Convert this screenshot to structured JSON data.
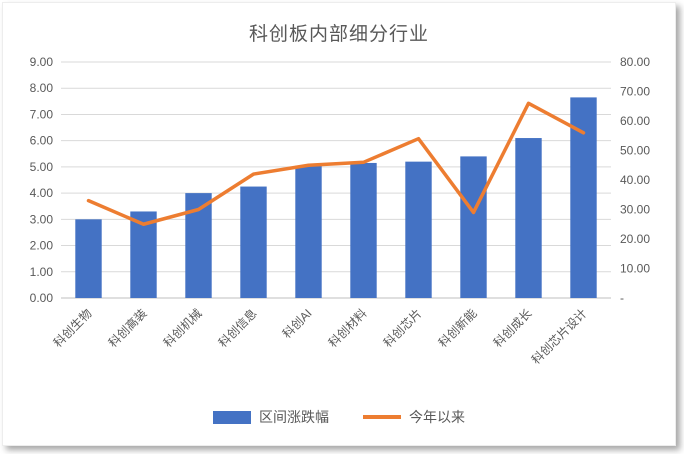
{
  "chart": {
    "title": "科创板内部细分行业",
    "colors": {
      "bar": "#4472C4",
      "line": "#ED7D31",
      "grid": "#D9D9D9",
      "axis_line": "#BFBFBF",
      "text": "#595959"
    },
    "chart_data": {
      "type": "bar",
      "subtype": "combo-bar-line",
      "title": "科创板内部细分行业",
      "xlabel": "",
      "ylabel": "",
      "grid": true,
      "legend_position": "bottom",
      "categories": [
        "科创生物",
        "科创高装",
        "科创机械",
        "科创信息",
        "科创AI",
        "科创材料",
        "科创芯片",
        "科创新能",
        "科创成长",
        "科创芯片设计"
      ],
      "series": [
        {
          "name": "区间涨跌幅",
          "type": "bar",
          "axis": "left",
          "color": "#4472C4",
          "values": [
            3.0,
            3.3,
            4.0,
            4.25,
            5.05,
            5.15,
            5.2,
            5.4,
            6.1,
            7.65
          ]
        },
        {
          "name": "今年以来",
          "type": "line",
          "axis": "right",
          "color": "#ED7D31",
          "values": [
            33,
            25,
            30,
            42,
            45,
            46,
            54,
            29,
            66,
            56
          ]
        }
      ],
      "left_axis": {
        "min": 0,
        "max": 9,
        "tick_values": [
          9,
          8,
          7,
          6,
          5,
          4,
          3,
          2,
          1,
          0
        ],
        "tick_labels": [
          "9.00",
          "8.00",
          "7.00",
          "6.00",
          "5.00",
          "4.00",
          "3.00",
          "2.00",
          "1.00",
          "0.00"
        ]
      },
      "right_axis": {
        "min": 0,
        "max": 80,
        "tick_values": [
          80,
          70,
          60,
          50,
          40,
          30,
          20,
          10,
          0
        ],
        "tick_labels": [
          "80.00",
          "70.00",
          "60.00",
          "50.00",
          "40.00",
          "30.00",
          "20.00",
          "10.00",
          "-"
        ]
      }
    }
  }
}
